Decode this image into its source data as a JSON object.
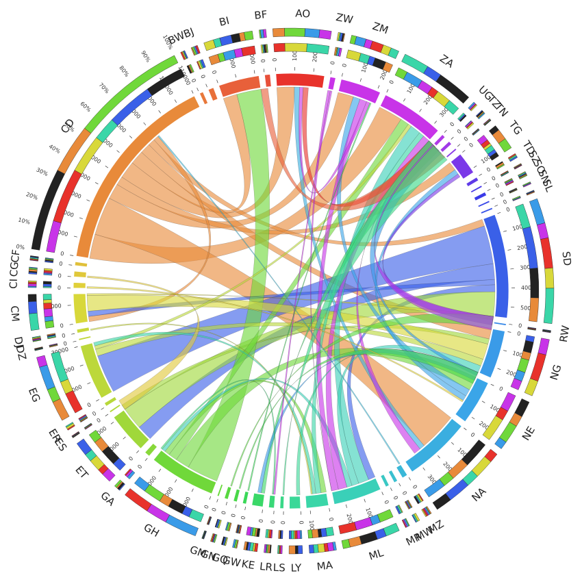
{
  "chart_data": {
    "type": "chord",
    "title": "",
    "tick_step": 10000,
    "percent_ticks": [
      "0%",
      "10%",
      "20%",
      "30%",
      "40%",
      "50%",
      "60%",
      "70%",
      "80%",
      "90%",
      "100%"
    ],
    "sectors": [
      {
        "code": "AO",
        "total": 26000,
        "color": "#e8322b"
      },
      {
        "code": "ZW",
        "total": 3000,
        "color": "#c834e8"
      },
      {
        "code": "ZM",
        "total": 22000,
        "color": "#c834e8"
      },
      {
        "code": "ZA",
        "total": 34000,
        "color": "#c834e8"
      },
      {
        "code": "UG",
        "total": 2000,
        "color": "#b03ae8"
      },
      {
        "code": "TZ",
        "total": 2000,
        "color": "#a03ae8"
      },
      {
        "code": "TN",
        "total": 1000,
        "color": "#8a3ae8"
      },
      {
        "code": "TG",
        "total": 12000,
        "color": "#7a38e8"
      },
      {
        "code": "TD",
        "total": 2000,
        "color": "#5f3ae8"
      },
      {
        "code": "SZ",
        "total": 1000,
        "color": "#4a3ae8"
      },
      {
        "code": "SO",
        "total": 2000,
        "color": "#3a3ae8"
      },
      {
        "code": "SN",
        "total": 1000,
        "color": "#3a48e8"
      },
      {
        "code": "SL",
        "total": 1000,
        "color": "#3a56e8"
      },
      {
        "code": "SD",
        "total": 56000,
        "color": "#3a60e8"
      },
      {
        "code": "RW",
        "total": 1000,
        "color": "#3a8ae8"
      },
      {
        "code": "NG",
        "total": 26000,
        "color": "#3a9be8"
      },
      {
        "code": "NE",
        "total": 24000,
        "color": "#3aa5e8"
      },
      {
        "code": "NA",
        "total": 36000,
        "color": "#3aaee0"
      },
      {
        "code": "MZ",
        "total": 3000,
        "color": "#3ab8d8"
      },
      {
        "code": "MW",
        "total": 2000,
        "color": "#3ac0d0"
      },
      {
        "code": "MR",
        "total": 2000,
        "color": "#3ac8c4"
      },
      {
        "code": "ML",
        "total": 26000,
        "color": "#3ad0b8"
      },
      {
        "code": "MA",
        "total": 12000,
        "color": "#3ad6a8"
      },
      {
        "code": "LY",
        "total": 6000,
        "color": "#3ad898"
      },
      {
        "code": "LS",
        "total": 2000,
        "color": "#3ad888"
      },
      {
        "code": "LR",
        "total": 3000,
        "color": "#3ad878"
      },
      {
        "code": "KE",
        "total": 6000,
        "color": "#3ad868"
      },
      {
        "code": "GW",
        "total": 2000,
        "color": "#3ad858"
      },
      {
        "code": "GQ",
        "total": 2000,
        "color": "#48d848"
      },
      {
        "code": "GN",
        "total": 2000,
        "color": "#58d840"
      },
      {
        "code": "GM",
        "total": 1000,
        "color": "#68d83a"
      },
      {
        "code": "GH",
        "total": 36000,
        "color": "#70d83a"
      },
      {
        "code": "GA",
        "total": 3000,
        "color": "#88d83a"
      },
      {
        "code": "ET",
        "total": 22000,
        "color": "#a0d83a"
      },
      {
        "code": "ES",
        "total": 1000,
        "color": "#b0d83a"
      },
      {
        "code": "ER",
        "total": 2000,
        "color": "#b8d83a"
      },
      {
        "code": "EG",
        "total": 30000,
        "color": "#bcd83a"
      },
      {
        "code": "DZ",
        "total": 1000,
        "color": "#c0d83a"
      },
      {
        "code": "DJ",
        "total": 2000,
        "color": "#c8d83a"
      },
      {
        "code": "CM",
        "total": 16000,
        "color": "#d8d83a"
      },
      {
        "code": "CI",
        "total": 3000,
        "color": "#e0d03a"
      },
      {
        "code": "CG",
        "total": 3000,
        "color": "#e0c83a"
      },
      {
        "code": "CF",
        "total": 2000,
        "color": "#e0c03a"
      },
      {
        "code": "CD",
        "total": 110000,
        "color": "#e88a3a"
      },
      {
        "code": "BW",
        "total": 2000,
        "color": "#e8783a"
      },
      {
        "code": "BJ",
        "total": 3000,
        "color": "#e8703a"
      },
      {
        "code": "BI",
        "total": 22000,
        "color": "#e8603a"
      },
      {
        "code": "BF",
        "total": 3000,
        "color": "#e8503a"
      }
    ],
    "flows": [
      {
        "from": "CD",
        "to": "ZA",
        "value": 14000
      },
      {
        "from": "CD",
        "to": "NA",
        "value": 22000
      },
      {
        "from": "CD",
        "to": "ZM",
        "value": 9000
      },
      {
        "from": "CD",
        "to": "TG",
        "value": 5000
      },
      {
        "from": "CD",
        "to": "AO",
        "value": 10000
      },
      {
        "from": "CD",
        "to": "BI",
        "value": 8000
      },
      {
        "from": "CD",
        "to": "NG",
        "value": 6000
      },
      {
        "from": "CD",
        "to": "SD",
        "value": 4000
      },
      {
        "from": "CD",
        "to": "CM",
        "value": 3000
      },
      {
        "from": "SD",
        "to": "EG",
        "value": 22000
      },
      {
        "from": "SD",
        "to": "ET",
        "value": 9000
      },
      {
        "from": "SD",
        "to": "CM",
        "value": 3000
      },
      {
        "from": "SD",
        "to": "ML",
        "value": 4000
      },
      {
        "from": "ET",
        "to": "SD",
        "value": 16000
      },
      {
        "from": "ET",
        "to": "NG",
        "value": 3000
      },
      {
        "from": "GH",
        "to": "BI",
        "value": 18000
      },
      {
        "from": "GH",
        "to": "NE",
        "value": 8000
      },
      {
        "from": "GH",
        "to": "ZA",
        "value": 5000
      },
      {
        "from": "GH",
        "to": "MA",
        "value": 3000
      },
      {
        "from": "CM",
        "to": "NG",
        "value": 9000
      },
      {
        "from": "CM",
        "to": "SD",
        "value": 3000
      },
      {
        "from": "EG",
        "to": "NG",
        "value": 4000
      },
      {
        "from": "EG",
        "to": "ZA",
        "value": 2000
      },
      {
        "from": "NE",
        "to": "ZM",
        "value": 4000
      },
      {
        "from": "NE",
        "to": "TG",
        "value": 3000
      },
      {
        "from": "ML",
        "to": "ZA",
        "value": 6000
      },
      {
        "from": "ML",
        "to": "NG",
        "value": 4000
      },
      {
        "from": "ML",
        "to": "GH",
        "value": 3000
      },
      {
        "from": "MA",
        "to": "ZA",
        "value": 3000
      },
      {
        "from": "MA",
        "to": "EG",
        "value": 2000
      },
      {
        "from": "NA",
        "to": "AO",
        "value": 3000
      },
      {
        "from": "ZA",
        "to": "ML",
        "value": 5000
      },
      {
        "from": "ZA",
        "to": "NA",
        "value": 4000
      },
      {
        "from": "ZM",
        "to": "ML",
        "value": 4000
      },
      {
        "from": "ZM",
        "to": "AO",
        "value": 2000
      },
      {
        "from": "AO",
        "to": "ZA",
        "value": 3000
      },
      {
        "from": "TG",
        "to": "SD",
        "value": 2000
      },
      {
        "from": "KE",
        "to": "ZA",
        "value": 2000
      },
      {
        "from": "LY",
        "to": "NG",
        "value": 2000
      },
      {
        "from": "NG",
        "to": "ZA",
        "value": 3000
      },
      {
        "from": "NG",
        "to": "KE",
        "value": 2000
      },
      {
        "from": "BI",
        "to": "ZA",
        "value": 2000
      },
      {
        "from": "ZW",
        "to": "ML",
        "value": 1500
      },
      {
        "from": "ZW",
        "to": "LR",
        "value": 1000
      },
      {
        "from": "GN",
        "to": "SD",
        "value": 800
      },
      {
        "from": "GQ",
        "to": "NG",
        "value": 800
      },
      {
        "from": "GW",
        "to": "ZM",
        "value": 800
      },
      {
        "from": "LR",
        "to": "GH",
        "value": 800
      },
      {
        "from": "LS",
        "to": "ZA",
        "value": 800
      },
      {
        "from": "CI",
        "to": "NE",
        "value": 1000
      },
      {
        "from": "CG",
        "to": "ET",
        "value": 1000
      },
      {
        "from": "DJ",
        "to": "MA",
        "value": 800
      },
      {
        "from": "UG",
        "to": "SD",
        "value": 800
      },
      {
        "from": "MZ",
        "to": "CD",
        "value": 800
      }
    ]
  }
}
